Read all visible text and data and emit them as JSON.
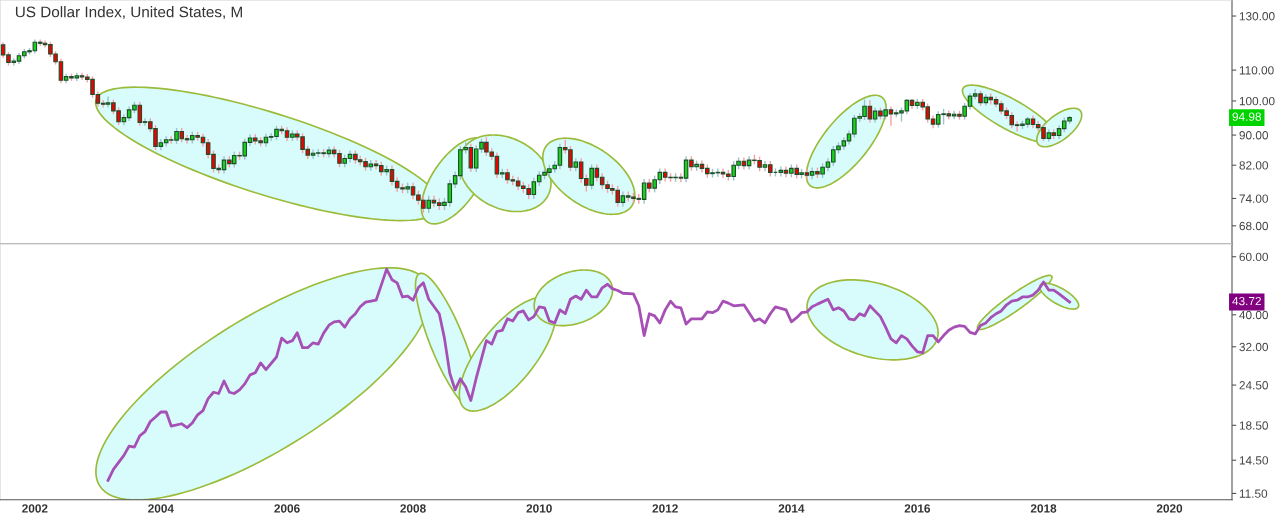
{
  "chart_data": [
    {
      "type": "candlestick",
      "title": "US Dollar Index, United States, M",
      "log": true,
      "tick_labels": "y",
      "xlim": [
        "2001-06-13",
        "2020-12-28"
      ],
      "xticks": [
        "2002",
        "2004",
        "2006",
        "2008",
        "2010",
        "2012",
        "2014",
        "2016",
        "2018",
        "2020"
      ],
      "ylim": [
        64.3,
        136.6
      ],
      "yticks": [
        {
          "value": 68,
          "label": "68.00"
        },
        {
          "value": 74,
          "label": "74.00"
        },
        {
          "value": 82,
          "label": "82.00"
        },
        {
          "value": 90,
          "label": "90.00"
        },
        {
          "value": 100,
          "label": "100.00"
        },
        {
          "value": 110,
          "label": "110.00"
        },
        {
          "value": 130,
          "label": "130.00"
        }
      ],
      "annotations": [
        {
          "text": "94.98",
          "y": 94.98
        }
      ],
      "x": [
        "2001-07",
        "2001-08",
        "2001-09",
        "2001-10",
        "2001-11",
        "2001-12",
        "2002-01",
        "2002-02",
        "2002-03",
        "2002-04",
        "2002-05",
        "2002-06",
        "2002-07",
        "2002-08",
        "2002-09",
        "2002-10",
        "2002-11",
        "2002-12",
        "2003-01",
        "2003-02",
        "2003-03",
        "2003-04",
        "2003-05",
        "2003-06",
        "2003-07",
        "2003-08",
        "2003-09",
        "2003-10",
        "2003-11",
        "2003-12",
        "2004-01",
        "2004-02",
        "2004-03",
        "2004-04",
        "2004-05",
        "2004-06",
        "2004-07",
        "2004-08",
        "2004-09",
        "2004-10",
        "2004-11",
        "2004-12",
        "2005-01",
        "2005-02",
        "2005-03",
        "2005-04",
        "2005-05",
        "2005-06",
        "2005-07",
        "2005-08",
        "2005-09",
        "2005-10",
        "2005-11",
        "2005-12",
        "2006-01",
        "2006-02",
        "2006-03",
        "2006-04",
        "2006-05",
        "2006-06",
        "2006-07",
        "2006-08",
        "2006-09",
        "2006-10",
        "2006-11",
        "2006-12",
        "2007-01",
        "2007-02",
        "2007-03",
        "2007-04",
        "2007-05",
        "2007-06",
        "2007-07",
        "2007-08",
        "2007-09",
        "2007-10",
        "2007-11",
        "2007-12",
        "2008-01",
        "2008-02",
        "2008-03",
        "2008-04",
        "2008-05",
        "2008-06",
        "2008-07",
        "2008-08",
        "2008-09",
        "2008-10",
        "2008-11",
        "2008-12",
        "2009-01",
        "2009-02",
        "2009-03",
        "2009-04",
        "2009-05",
        "2009-06",
        "2009-07",
        "2009-08",
        "2009-09",
        "2009-10",
        "2009-11",
        "2009-12",
        "2010-01",
        "2010-02",
        "2010-03",
        "2010-04",
        "2010-05",
        "2010-06",
        "2010-07",
        "2010-08",
        "2010-09",
        "2010-10",
        "2010-11",
        "2010-12",
        "2011-01",
        "2011-02",
        "2011-03",
        "2011-04",
        "2011-05",
        "2011-06",
        "2011-07",
        "2011-08",
        "2011-09",
        "2011-10",
        "2011-11",
        "2011-12",
        "2012-01",
        "2012-02",
        "2012-03",
        "2012-04",
        "2012-05",
        "2012-06",
        "2012-07",
        "2012-08",
        "2012-09",
        "2012-10",
        "2012-11",
        "2012-12",
        "2013-01",
        "2013-02",
        "2013-03",
        "2013-04",
        "2013-05",
        "2013-06",
        "2013-07",
        "2013-08",
        "2013-09",
        "2013-10",
        "2013-11",
        "2013-12",
        "2014-01",
        "2014-02",
        "2014-03",
        "2014-04",
        "2014-05",
        "2014-06",
        "2014-07",
        "2014-08",
        "2014-09",
        "2014-10",
        "2014-11",
        "2014-12",
        "2015-01",
        "2015-02",
        "2015-03",
        "2015-04",
        "2015-05",
        "2015-06",
        "2015-07",
        "2015-08",
        "2015-09",
        "2015-10",
        "2015-11",
        "2015-12",
        "2016-01",
        "2016-02",
        "2016-03",
        "2016-04",
        "2016-05",
        "2016-06",
        "2016-07",
        "2016-08",
        "2016-09",
        "2016-10",
        "2016-11",
        "2016-12",
        "2017-01",
        "2017-02",
        "2017-03",
        "2017-04",
        "2017-05",
        "2017-06",
        "2017-07",
        "2017-08",
        "2017-09",
        "2017-10",
        "2017-11",
        "2017-12",
        "2018-01",
        "2018-02",
        "2018-03",
        "2018-04",
        "2018-05",
        "2018-06"
      ],
      "ohlc": [
        [
          118.9,
          119.9,
          114.3,
          115.3
        ],
        [
          115.3,
          116.3,
          111.6,
          112.6
        ],
        [
          112.6,
          114.1,
          111.6,
          113.1
        ],
        [
          113.1,
          116.0,
          112.1,
          115.0
        ],
        [
          115.0,
          117.4,
          114.0,
          116.4
        ],
        [
          116.4,
          117.8,
          115.4,
          116.8
        ],
        [
          116.8,
          120.9,
          115.8,
          119.9
        ],
        [
          119.9,
          120.9,
          118.5,
          119.5
        ],
        [
          119.5,
          120.5,
          118.0,
          119.0
        ],
        [
          119.0,
          120.0,
          114.6,
          115.6
        ],
        [
          115.6,
          116.6,
          111.9,
          112.9
        ],
        [
          112.9,
          113.9,
          105.6,
          106.6
        ],
        [
          106.6,
          108.8,
          105.6,
          107.8
        ],
        [
          107.8,
          108.8,
          106.4,
          107.4
        ],
        [
          107.4,
          109.1,
          106.4,
          108.1
        ],
        [
          108.1,
          109.1,
          106.7,
          107.7
        ],
        [
          107.7,
          108.7,
          105.9,
          106.9
        ],
        [
          106.9,
          107.9,
          101.0,
          102.0
        ],
        [
          102.0,
          103.0,
          98.3,
          99.3
        ],
        [
          99.3,
          100.3,
          98.0,
          99.0
        ],
        [
          99.0,
          101.4,
          98.0,
          99.4
        ],
        [
          99.4,
          100.4,
          96.0,
          97.0
        ],
        [
          97.0,
          98.0,
          92.8,
          93.8
        ],
        [
          93.8,
          96.0,
          92.8,
          95.0
        ],
        [
          95.0,
          98.3,
          94.0,
          97.3
        ],
        [
          97.3,
          99.7,
          96.3,
          98.7
        ],
        [
          98.7,
          99.7,
          92.6,
          93.6
        ],
        [
          93.6,
          94.8,
          92.6,
          93.8
        ],
        [
          93.8,
          94.8,
          90.8,
          91.8
        ],
        [
          91.8,
          92.8,
          85.9,
          86.9
        ],
        [
          86.9,
          88.9,
          85.9,
          87.9
        ],
        [
          87.9,
          89.7,
          86.9,
          88.7
        ],
        [
          88.7,
          89.7,
          87.6,
          88.6
        ],
        [
          88.6,
          92.0,
          87.6,
          91.0
        ],
        [
          91.0,
          92.0,
          88.0,
          89.0
        ],
        [
          89.0,
          90.0,
          87.7,
          88.7
        ],
        [
          88.7,
          90.9,
          87.7,
          89.9
        ],
        [
          89.9,
          90.9,
          88.4,
          89.4
        ],
        [
          89.4,
          90.4,
          86.9,
          87.9
        ],
        [
          87.9,
          88.9,
          83.8,
          84.8
        ],
        [
          84.8,
          85.8,
          80.2,
          81.2
        ],
        [
          81.2,
          82.2,
          79.9,
          80.9
        ],
        [
          80.9,
          84.3,
          79.9,
          83.3
        ],
        [
          83.3,
          84.3,
          81.4,
          82.4
        ],
        [
          82.4,
          85.5,
          81.4,
          84.5
        ],
        [
          84.5,
          85.5,
          83.4,
          84.4
        ],
        [
          84.4,
          89.0,
          83.4,
          88.0
        ],
        [
          88.0,
          90.2,
          87.0,
          89.2
        ],
        [
          89.2,
          90.2,
          87.4,
          88.4
        ],
        [
          88.4,
          89.4,
          86.9,
          87.9
        ],
        [
          87.9,
          90.4,
          86.9,
          89.4
        ],
        [
          89.4,
          90.6,
          88.4,
          89.6
        ],
        [
          89.6,
          92.6,
          88.6,
          91.6
        ],
        [
          91.6,
          92.6,
          90.2,
          91.2
        ],
        [
          91.2,
          92.2,
          88.4,
          89.4
        ],
        [
          89.4,
          91.3,
          88.4,
          90.3
        ],
        [
          90.3,
          91.3,
          88.5,
          89.5
        ],
        [
          89.5,
          90.5,
          85.1,
          86.1
        ],
        [
          86.1,
          87.1,
          83.6,
          84.6
        ],
        [
          84.6,
          86.1,
          83.6,
          85.1
        ],
        [
          85.1,
          86.2,
          84.1,
          85.2
        ],
        [
          85.2,
          86.2,
          84.0,
          85.0
        ],
        [
          85.0,
          86.9,
          84.0,
          85.9
        ],
        [
          85.9,
          86.9,
          84.0,
          85.0
        ],
        [
          85.0,
          86.0,
          81.5,
          82.5
        ],
        [
          82.5,
          84.7,
          81.5,
          83.7
        ],
        [
          83.7,
          85.8,
          82.7,
          84.8
        ],
        [
          84.8,
          85.8,
          82.4,
          83.4
        ],
        [
          83.4,
          84.4,
          81.9,
          82.9
        ],
        [
          82.9,
          83.9,
          80.6,
          81.6
        ],
        [
          81.6,
          83.3,
          80.6,
          82.3
        ],
        [
          82.3,
          83.3,
          80.9,
          81.9
        ],
        [
          81.9,
          82.9,
          79.4,
          80.4
        ],
        [
          80.4,
          81.9,
          79.4,
          80.9
        ],
        [
          80.9,
          81.9,
          77.0,
          78.0
        ],
        [
          78.0,
          79.0,
          75.5,
          76.5
        ],
        [
          76.5,
          77.5,
          75.2,
          76.2
        ],
        [
          76.2,
          77.7,
          75.2,
          76.7
        ],
        [
          76.7,
          77.7,
          73.8,
          74.8
        ],
        [
          74.8,
          75.8,
          72.6,
          73.6
        ],
        [
          73.6,
          74.6,
          70.8,
          71.8
        ],
        [
          71.8,
          74.6,
          70.8,
          73.6
        ],
        [
          73.6,
          74.6,
          72.0,
          73.0
        ],
        [
          73.0,
          74.0,
          71.4,
          72.4
        ],
        [
          72.4,
          74.1,
          71.4,
          73.1
        ],
        [
          73.1,
          78.4,
          72.1,
          77.4
        ],
        [
          77.4,
          80.4,
          76.4,
          79.4
        ],
        [
          79.4,
          87.0,
          78.4,
          86.0
        ],
        [
          86.0,
          88.0,
          85.0,
          86.6
        ],
        [
          86.6,
          87.6,
          80.3,
          81.3
        ],
        [
          81.3,
          87.2,
          80.3,
          86.2
        ],
        [
          86.2,
          89.0,
          85.2,
          88.0
        ],
        [
          88.0,
          89.4,
          84.4,
          85.4
        ],
        [
          85.4,
          86.4,
          83.3,
          84.3
        ],
        [
          84.3,
          85.3,
          78.8,
          79.8
        ],
        [
          79.8,
          81.1,
          78.8,
          80.1
        ],
        [
          80.1,
          81.1,
          77.4,
          78.4
        ],
        [
          78.4,
          79.4,
          77.1,
          78.1
        ],
        [
          78.1,
          79.1,
          75.9,
          76.9
        ],
        [
          76.9,
          77.9,
          75.3,
          76.3
        ],
        [
          76.3,
          77.3,
          73.9,
          74.9
        ],
        [
          74.9,
          78.9,
          73.9,
          77.9
        ],
        [
          77.9,
          80.5,
          76.9,
          79.5
        ],
        [
          79.5,
          81.2,
          78.5,
          80.2
        ],
        [
          80.2,
          82.1,
          79.2,
          81.1
        ],
        [
          81.1,
          83.0,
          80.1,
          82.0
        ],
        [
          82.0,
          87.6,
          81.0,
          86.6
        ],
        [
          86.6,
          88.7,
          85.0,
          86.0
        ],
        [
          86.0,
          87.0,
          80.5,
          81.5
        ],
        [
          81.5,
          83.8,
          80.5,
          82.8
        ],
        [
          82.8,
          83.8,
          77.7,
          78.7
        ],
        [
          78.7,
          79.7,
          75.6,
          77.1
        ],
        [
          77.1,
          82.2,
          76.1,
          81.2
        ],
        [
          81.2,
          82.2,
          78.0,
          79.0
        ],
        [
          79.0,
          80.0,
          76.2,
          77.2
        ],
        [
          77.2,
          78.2,
          75.3,
          76.3
        ],
        [
          76.3,
          77.3,
          74.9,
          75.9
        ],
        [
          75.9,
          76.9,
          72.1,
          73.1
        ],
        [
          73.1,
          75.6,
          72.1,
          74.6
        ],
        [
          74.6,
          75.6,
          73.3,
          74.3
        ],
        [
          74.3,
          75.3,
          73.0,
          74.0
        ],
        [
          74.0,
          75.0,
          72.8,
          73.8
        ],
        [
          73.8,
          78.6,
          72.8,
          77.6
        ],
        [
          77.6,
          78.6,
          75.4,
          76.4
        ],
        [
          76.4,
          79.4,
          75.4,
          78.4
        ],
        [
          78.4,
          81.2,
          77.4,
          80.2
        ],
        [
          80.2,
          81.2,
          78.0,
          79.0
        ],
        [
          79.0,
          80.0,
          77.9,
          78.9
        ],
        [
          78.9,
          80.0,
          77.9,
          79.0
        ],
        [
          79.0,
          80.0,
          77.8,
          78.8
        ],
        [
          78.8,
          84.3,
          77.8,
          83.3
        ],
        [
          83.3,
          84.3,
          80.6,
          81.6
        ],
        [
          81.6,
          83.2,
          80.6,
          82.2
        ],
        [
          82.2,
          83.2,
          80.2,
          81.2
        ],
        [
          81.2,
          82.2,
          78.9,
          79.9
        ],
        [
          79.9,
          81.1,
          78.9,
          80.1
        ],
        [
          80.1,
          81.2,
          79.1,
          80.2
        ],
        [
          80.2,
          81.2,
          78.8,
          79.8
        ],
        [
          79.8,
          80.8,
          78.2,
          79.2
        ],
        [
          79.2,
          83.0,
          78.2,
          82.0
        ],
        [
          82.0,
          84.0,
          81.0,
          83.0
        ],
        [
          83.0,
          84.0,
          80.9,
          81.9
        ],
        [
          81.9,
          84.3,
          80.9,
          83.3
        ],
        [
          83.3,
          84.7,
          82.2,
          83.2
        ],
        [
          83.2,
          84.2,
          80.5,
          81.5
        ],
        [
          81.5,
          83.1,
          80.5,
          82.1
        ],
        [
          82.1,
          83.1,
          79.2,
          80.2
        ],
        [
          80.2,
          81.2,
          79.2,
          80.2
        ],
        [
          80.2,
          81.7,
          79.2,
          80.7
        ],
        [
          80.7,
          81.7,
          79.0,
          80.0
        ],
        [
          80.0,
          82.2,
          79.0,
          81.2
        ],
        [
          81.2,
          82.2,
          78.7,
          79.7
        ],
        [
          79.7,
          81.1,
          78.7,
          80.1
        ],
        [
          80.1,
          81.1,
          78.5,
          79.5
        ],
        [
          79.5,
          81.4,
          78.5,
          80.4
        ],
        [
          80.4,
          81.4,
          78.8,
          79.8
        ],
        [
          79.8,
          82.5,
          78.8,
          81.5
        ],
        [
          81.5,
          83.8,
          80.5,
          82.8
        ],
        [
          82.8,
          87.0,
          81.8,
          86.0
        ],
        [
          86.0,
          88.0,
          85.0,
          87.0
        ],
        [
          87.0,
          89.4,
          86.0,
          88.4
        ],
        [
          88.4,
          91.3,
          87.4,
          90.3
        ],
        [
          90.3,
          95.8,
          89.3,
          94.8
        ],
        [
          94.8,
          96.3,
          93.8,
          95.3
        ],
        [
          95.3,
          100.4,
          94.3,
          98.4
        ],
        [
          98.4,
          100.2,
          93.6,
          94.6
        ],
        [
          94.6,
          97.9,
          93.6,
          96.9
        ],
        [
          96.9,
          97.9,
          94.5,
          95.5
        ],
        [
          95.5,
          98.3,
          94.5,
          97.3
        ],
        [
          97.3,
          98.3,
          92.6,
          96.1
        ],
        [
          96.1,
          97.4,
          95.1,
          96.4
        ],
        [
          96.4,
          98.0,
          93.8,
          97.0
        ],
        [
          97.0,
          100.6,
          96.0,
          100.2
        ],
        [
          100.2,
          100.6,
          97.6,
          98.6
        ],
        [
          98.6,
          100.6,
          97.6,
          99.6
        ],
        [
          99.6,
          100.6,
          97.2,
          98.2
        ],
        [
          98.2,
          99.2,
          93.6,
          94.6
        ],
        [
          94.6,
          95.6,
          91.9,
          93.1
        ],
        [
          93.1,
          96.9,
          92.1,
          95.9
        ],
        [
          95.9,
          97.6,
          93.0,
          96.1
        ],
        [
          96.1,
          97.1,
          94.5,
          95.5
        ],
        [
          95.5,
          97.0,
          94.5,
          96.0
        ],
        [
          96.0,
          97.0,
          94.4,
          95.4
        ],
        [
          95.4,
          99.4,
          94.4,
          98.4
        ],
        [
          98.4,
          102.5,
          97.4,
          101.5
        ],
        [
          101.5,
          103.8,
          100.5,
          102.2
        ],
        [
          102.2,
          103.2,
          98.5,
          99.5
        ],
        [
          99.5,
          102.1,
          98.5,
          101.1
        ],
        [
          101.1,
          102.3,
          98.9,
          100.4
        ],
        [
          100.4,
          101.4,
          98.1,
          99.1
        ],
        [
          99.1,
          100.1,
          96.0,
          97.0
        ],
        [
          97.0,
          98.0,
          94.6,
          95.6
        ],
        [
          95.6,
          96.6,
          91.9,
          92.9
        ],
        [
          92.9,
          93.9,
          91.0,
          92.7
        ],
        [
          92.7,
          94.1,
          91.7,
          93.1
        ],
        [
          93.1,
          95.2,
          92.1,
          94.6
        ],
        [
          94.6,
          95.6,
          92.0,
          93.0
        ],
        [
          93.0,
          94.0,
          91.1,
          92.1
        ],
        [
          92.1,
          93.1,
          88.4,
          89.1
        ],
        [
          89.1,
          91.6,
          88.2,
          90.6
        ],
        [
          90.6,
          91.6,
          88.9,
          89.9
        ],
        [
          89.9,
          92.8,
          88.9,
          91.8
        ],
        [
          91.8,
          95.0,
          90.8,
          94.0
        ],
        [
          94.0,
          95.5,
          93.2,
          94.98
        ]
      ]
    },
    {
      "type": "line",
      "log": true,
      "xlim": [
        "2001-06-13",
        "2020-12-28"
      ],
      "xticks": [
        "2002",
        "2004",
        "2006",
        "2008",
        "2010",
        "2012",
        "2014",
        "2016",
        "2018",
        "2020"
      ],
      "ylim": [
        11.0,
        65.6
      ],
      "yticks": [
        {
          "value": 11.5,
          "label": "11.50"
        },
        {
          "value": 14.5,
          "label": "14.50"
        },
        {
          "value": 18.5,
          "label": "18.50"
        },
        {
          "value": 24.5,
          "label": "24.50"
        },
        {
          "value": 32,
          "label": "32.00"
        },
        {
          "value": 40,
          "label": "40.00"
        },
        {
          "value": 60,
          "label": "60.00"
        }
      ],
      "annotations": [
        {
          "text": "43.72",
          "y": 43.72
        }
      ],
      "x": [
        "2003-03",
        "2003-04",
        "2003-06",
        "2003-07",
        "2003-08",
        "2003-09",
        "2003-10",
        "2003-11",
        "2003-12",
        "2004-01",
        "2004-02",
        "2004-03",
        "2004-05",
        "2004-06",
        "2004-07",
        "2004-08",
        "2004-09",
        "2004-10",
        "2004-11",
        "2004-12",
        "2005-01",
        "2005-02",
        "2005-03",
        "2005-04",
        "2005-05",
        "2005-06",
        "2005-07",
        "2005-08",
        "2005-09",
        "2005-11",
        "2005-12",
        "2006-01",
        "2006-02",
        "2006-03",
        "2006-04",
        "2006-05",
        "2006-06",
        "2006-07",
        "2006-08",
        "2006-09",
        "2006-10",
        "2006-11",
        "2006-12",
        "2007-01",
        "2007-02",
        "2007-03",
        "2007-04",
        "2007-06",
        "2007-07",
        "2007-08",
        "2007-09",
        "2007-10",
        "2007-11",
        "2007-12",
        "2008-01",
        "2008-02",
        "2008-03",
        "2008-04",
        "2008-06",
        "2008-07",
        "2008-08",
        "2008-09",
        "2008-10",
        "2008-11",
        "2008-12",
        "2009-01",
        "2009-03",
        "2009-04",
        "2009-05",
        "2009-06",
        "2009-07",
        "2009-08",
        "2009-09",
        "2009-10",
        "2009-11",
        "2009-12",
        "2010-01",
        "2010-02",
        "2010-03",
        "2010-04",
        "2010-05",
        "2010-06",
        "2010-07",
        "2010-08",
        "2010-09",
        "2010-10",
        "2010-11",
        "2010-12",
        "2011-01",
        "2011-02",
        "2011-03",
        "2011-04",
        "2011-05",
        "2011-07",
        "2011-08",
        "2011-09",
        "2011-10",
        "2011-11",
        "2011-12",
        "2012-01",
        "2012-02",
        "2012-03",
        "2012-04",
        "2012-05",
        "2012-06",
        "2012-08",
        "2012-09",
        "2012-10",
        "2012-11",
        "2012-12",
        "2013-01",
        "2013-02",
        "2013-04",
        "2013-05",
        "2013-06",
        "2013-07",
        "2013-08",
        "2013-09",
        "2013-10",
        "2013-12",
        "2014-01",
        "2014-02",
        "2014-03",
        "2014-04",
        "2014-05",
        "2014-06",
        "2014-08",
        "2014-09",
        "2014-10",
        "2014-11",
        "2014-12",
        "2015-01",
        "2015-02",
        "2015-03",
        "2015-04",
        "2015-06",
        "2015-07",
        "2015-08",
        "2015-09",
        "2015-10",
        "2015-11",
        "2015-12",
        "2016-01",
        "2016-02",
        "2016-03",
        "2016-04",
        "2016-05",
        "2016-06",
        "2016-07",
        "2016-08",
        "2016-09",
        "2016-10",
        "2016-11",
        "2016-12",
        "2017-01",
        "2017-02",
        "2017-03",
        "2017-04",
        "2017-05",
        "2017-06",
        "2017-07",
        "2017-08",
        "2017-09",
        "2017-10",
        "2017-11",
        "2017-12",
        "2018-01",
        "2018-02",
        "2018-03",
        "2018-04",
        "2018-05",
        "2018-06"
      ],
      "series": [
        {
          "color": "#a64fb5",
          "values": [
            12.6,
            13.6,
            15.0,
            16.0,
            15.9,
            17.2,
            17.7,
            19.0,
            19.6,
            20.3,
            20.3,
            18.4,
            18.7,
            18.2,
            18.8,
            19.9,
            20.5,
            22.3,
            23.3,
            23.1,
            25.2,
            23.3,
            23.1,
            23.7,
            24.7,
            26.3,
            26.7,
            28.6,
            27.3,
            29.8,
            34.0,
            32.9,
            33.4,
            35.3,
            31.8,
            31.8,
            32.9,
            32.6,
            35.2,
            37.2,
            38.1,
            38.3,
            36.7,
            38.9,
            40.3,
            42.3,
            43.7,
            44.3,
            49.2,
            55.0,
            51.1,
            50.0,
            45.3,
            45.6,
            44.3,
            48.4,
            50.0,
            44.6,
            40.3,
            34.0,
            26.6,
            23.7,
            25.6,
            24.2,
            22.0,
            25.7,
            33.4,
            32.6,
            35.6,
            35.9,
            38.9,
            38.3,
            40.6,
            41.1,
            38.6,
            39.5,
            42.3,
            42.0,
            38.3,
            37.8,
            41.4,
            40.3,
            44.6,
            45.6,
            44.6,
            47.5,
            45.3,
            45.3,
            48.3,
            49.5,
            48.0,
            47.4,
            46.5,
            46.3,
            42.6,
            34.6,
            40.3,
            39.7,
            37.8,
            41.4,
            44.0,
            42.3,
            42.0,
            37.5,
            38.9,
            38.9,
            40.8,
            40.6,
            41.4,
            44.0,
            43.4,
            42.6,
            42.9,
            40.6,
            38.3,
            38.9,
            37.8,
            40.3,
            42.3,
            41.4,
            38.1,
            39.2,
            40.6,
            40.8,
            42.3,
            43.1,
            44.6,
            41.4,
            42.0,
            41.1,
            38.9,
            38.6,
            40.3,
            39.7,
            42.6,
            39.5,
            36.7,
            33.8,
            32.9,
            34.6,
            33.8,
            32.2,
            30.9,
            30.7,
            34.6,
            34.6,
            33.1,
            34.6,
            35.9,
            36.7,
            37.1,
            36.9,
            35.4,
            35.0,
            37.1,
            37.8,
            39.2,
            40.3,
            41.1,
            42.9,
            44.0,
            44.3,
            45.3,
            45.3,
            45.9,
            47.5,
            50.3,
            47.5,
            47.5,
            46.3,
            45.0,
            43.72
          ]
        }
      ]
    }
  ]
}
